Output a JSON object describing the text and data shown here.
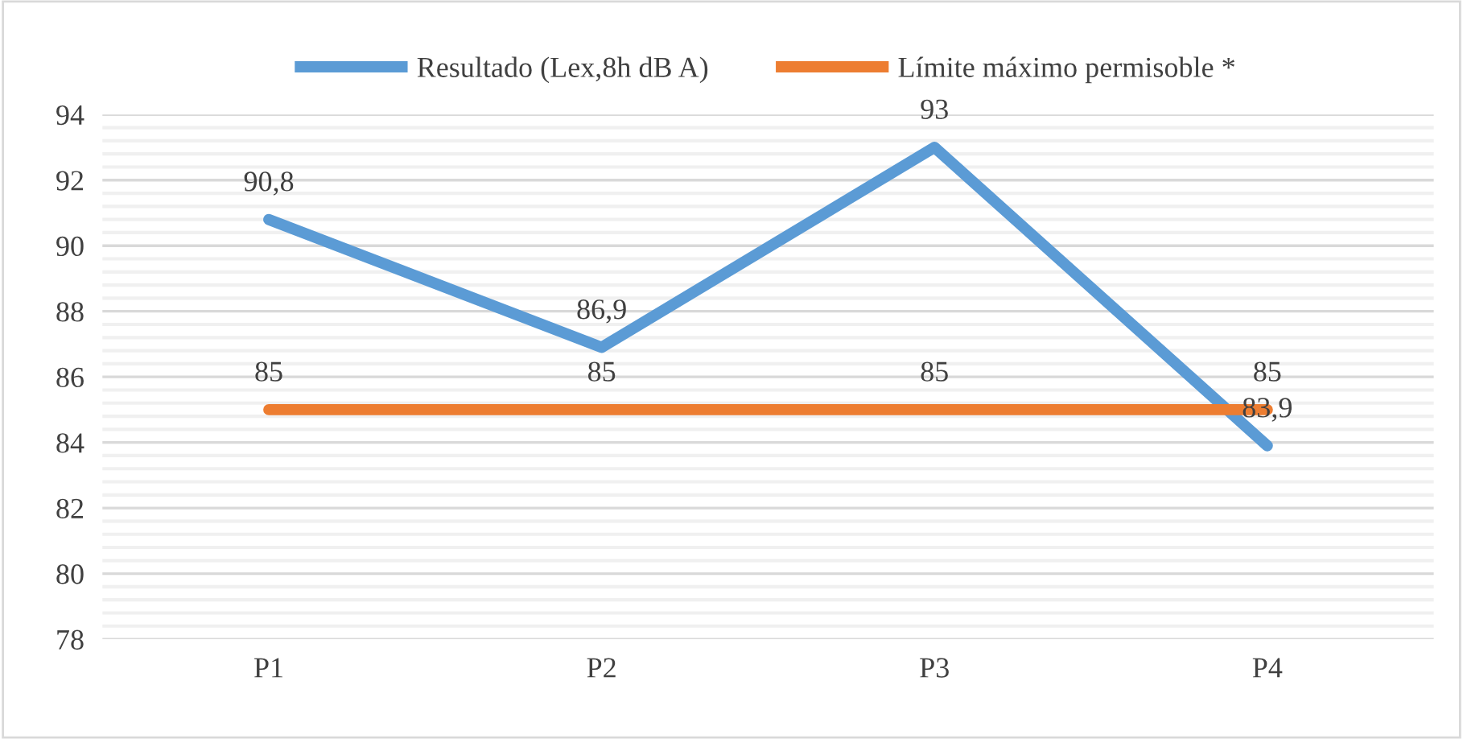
{
  "chart_data": {
    "type": "line",
    "categories": [
      "P1",
      "P2",
      "P3",
      "P4"
    ],
    "series": [
      {
        "name": "Resultado (Lex,8h dB A)",
        "color": "#5b9bd5",
        "values": [
          90.8,
          86.9,
          93,
          83.9
        ],
        "value_labels": [
          "90,8",
          "86,9",
          "93",
          "83,9"
        ]
      },
      {
        "name": "Límite máximo permisoble *",
        "color": "#ed7d31",
        "values": [
          85,
          85,
          85,
          85
        ],
        "value_labels": [
          "85",
          "85",
          "85",
          "85"
        ]
      }
    ],
    "ylim": [
      78,
      94
    ],
    "yticks": [
      78,
      80,
      82,
      84,
      86,
      88,
      90,
      92,
      94
    ],
    "grid": "y",
    "legend": "top",
    "marker": "none",
    "line_style": "solid"
  }
}
